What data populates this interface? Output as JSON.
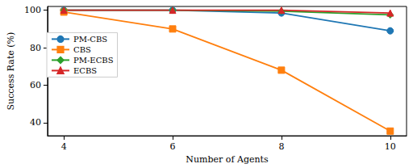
{
  "chart_data": {
    "type": "line",
    "x_label": "Number of Agents",
    "y_label": "Success Rate (%)",
    "x": [
      4,
      6,
      8,
      10
    ],
    "xlim": [
      3.7,
      10.3
    ],
    "xticks": [
      4,
      6,
      8,
      10
    ],
    "ylim": [
      33,
      102
    ],
    "yticks": [
      40,
      60,
      80,
      100
    ],
    "grid": false,
    "legend": "upper left",
    "series": [
      {
        "name": "PM-CBS",
        "color": "#1f77b4",
        "marker": "circle",
        "values": [
          100,
          100,
          98.5,
          89
        ]
      },
      {
        "name": "CBS",
        "color": "#ff7f0e",
        "marker": "square",
        "values": [
          99,
          90,
          68,
          35.5
        ]
      },
      {
        "name": "PM-ECBS",
        "color": "#2ca02c",
        "marker": "diamond",
        "values": [
          100,
          100,
          99.5,
          97.5
        ]
      },
      {
        "name": "ECBS",
        "color": "#d62728",
        "marker": "triangle",
        "values": [
          100,
          100,
          100,
          98.5
        ]
      }
    ]
  }
}
